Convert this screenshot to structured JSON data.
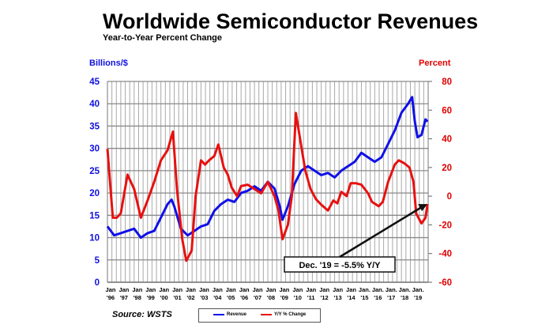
{
  "chart_data": {
    "type": "line",
    "title": "Worldwide Semiconductor Revenues",
    "subtitle": "Year-to-Year Percent Change",
    "ylabel_left": "Billions/$",
    "ylabel_right": "Percent",
    "ylim_left": [
      0,
      45
    ],
    "ylim_right": [
      -60,
      80
    ],
    "yticks_left": [
      "0",
      "5",
      "10",
      "15",
      "20",
      "25",
      "30",
      "35",
      "40",
      "45"
    ],
    "yticks_right": [
      "-60",
      "-40",
      "-20",
      "0",
      "20",
      "40",
      "60",
      "80"
    ],
    "xlim": [
      1996,
      2020
    ],
    "xticks": [
      [
        "Jan",
        "'96"
      ],
      [
        "Jan",
        "'97"
      ],
      [
        "Jan",
        "'98"
      ],
      [
        "Jan",
        "'99"
      ],
      [
        "Jan",
        "'00"
      ],
      [
        "Jan",
        "'01"
      ],
      [
        "Jan",
        "'02"
      ],
      [
        "Jan",
        "'03"
      ],
      [
        "Jan",
        "'04"
      ],
      [
        "Jan",
        "'05"
      ],
      [
        "Jan",
        "'06"
      ],
      [
        "Jan",
        "'07"
      ],
      [
        "Jan",
        "'08"
      ],
      [
        "Jan",
        "'09"
      ],
      [
        "Jan",
        "'10"
      ],
      [
        "Jan",
        "'11"
      ],
      [
        "Jan",
        "'12"
      ],
      [
        "Jan",
        "'13"
      ],
      [
        "Jan",
        "'14"
      ],
      [
        "Jan.",
        "'15"
      ],
      [
        "Jan.",
        "'16"
      ],
      [
        "Jan.",
        "'17"
      ],
      [
        "Jan.",
        "'18"
      ],
      [
        "Jan.",
        "'19"
      ]
    ],
    "grid": true,
    "legend_position": "bottom-center",
    "source": "Source: WSTS",
    "annotation": "Dec. '19 = -5.5% Y/Y",
    "series": [
      {
        "name": "Revenue",
        "axis": "left",
        "color": "#1010e8",
        "x": [
          1996.0,
          1996.5,
          1997.0,
          1997.5,
          1998.0,
          1998.5,
          1999.0,
          1999.5,
          2000.0,
          2000.5,
          2000.8,
          2001.0,
          2001.5,
          2002.0,
          2002.5,
          2003.0,
          2003.5,
          2004.0,
          2004.5,
          2005.0,
          2005.5,
          2006.0,
          2006.5,
          2007.0,
          2007.5,
          2008.0,
          2008.5,
          2008.9,
          2009.1,
          2009.5,
          2010.0,
          2010.5,
          2011.0,
          2011.5,
          2012.0,
          2012.5,
          2013.0,
          2013.5,
          2014.0,
          2014.5,
          2015.0,
          2015.5,
          2016.0,
          2016.5,
          2017.0,
          2017.5,
          2018.0,
          2018.5,
          2018.8,
          2019.0,
          2019.2,
          2019.5,
          2019.8,
          2019.95
        ],
        "y": [
          12.5,
          10.5,
          11,
          11.5,
          12,
          10,
          11,
          11.5,
          14.5,
          17.5,
          18.5,
          17,
          12,
          10.5,
          11.5,
          12.5,
          13,
          16,
          17.5,
          18.5,
          18,
          20,
          20.5,
          21.5,
          20.5,
          22.5,
          21,
          17,
          14,
          17,
          22,
          25,
          26,
          25,
          24,
          24.5,
          23.5,
          25,
          26,
          27,
          29,
          28,
          27,
          28,
          31,
          34,
          38,
          40,
          41.5,
          36,
          32.5,
          33,
          36.5,
          36
        ]
      },
      {
        "name": "Y/Y % Change",
        "axis": "right",
        "color": "#e81010",
        "x": [
          1996.0,
          1996.4,
          1996.7,
          1997.0,
          1997.5,
          1998.0,
          1998.5,
          1999.0,
          1999.5,
          2000.0,
          2000.5,
          2000.9,
          2001.2,
          2001.6,
          2001.9,
          2002.3,
          2002.6,
          2003.0,
          2003.3,
          2003.6,
          2004.0,
          2004.3,
          2004.7,
          2005.0,
          2005.3,
          2005.7,
          2006.0,
          2006.5,
          2007.0,
          2007.5,
          2008.0,
          2008.5,
          2008.8,
          2009.1,
          2009.5,
          2009.8,
          2010.1,
          2010.5,
          2010.8,
          2011.2,
          2011.6,
          2012.0,
          2012.5,
          2012.9,
          2013.2,
          2013.5,
          2013.9,
          2014.2,
          2014.6,
          2015.0,
          2015.5,
          2015.8,
          2016.3,
          2016.6,
          2017.0,
          2017.5,
          2017.8,
          2018.2,
          2018.6,
          2018.9,
          2019.1,
          2019.5,
          2019.8,
          2019.95
        ],
        "y": [
          33,
          -15,
          -15,
          -12,
          15,
          5,
          -15,
          -3,
          10,
          25,
          32,
          45,
          5,
          -30,
          -45,
          -38,
          0,
          25,
          22,
          25,
          28,
          36,
          20,
          15,
          6,
          0,
          7,
          8,
          5,
          2,
          10,
          0,
          -10,
          -30,
          -20,
          0,
          58,
          35,
          18,
          5,
          -2,
          -6,
          -10,
          -3,
          -5,
          3,
          0,
          9,
          9,
          8,
          2,
          -4,
          -7,
          -4,
          10,
          22,
          25,
          23,
          20,
          10,
          -12,
          -19,
          -15,
          -5.5
        ]
      }
    ]
  }
}
